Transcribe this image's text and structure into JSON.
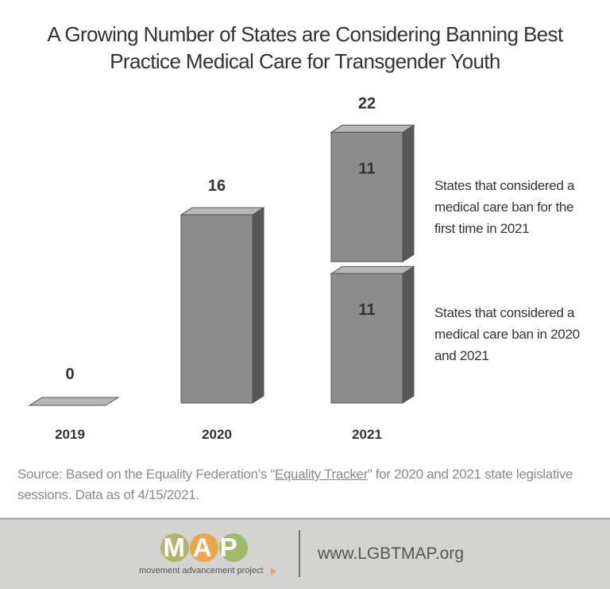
{
  "chart_data": {
    "type": "bar3d",
    "title": "A Growing Number of States are Considering Banning Best Practice Medical Care for Transgender Youth",
    "categories": [
      "2019",
      "2020",
      "2021"
    ],
    "series": [
      {
        "name": "States that considered a medical care ban in 2020 and 2021",
        "color": "#8c8c8c",
        "values": [
          0,
          16,
          11
        ]
      },
      {
        "name": "States that considered a medical care ban for the first time in 2021",
        "color": "#8c8c8c",
        "values": [
          null,
          null,
          11
        ]
      }
    ],
    "totals": [
      0,
      16,
      22
    ]
  },
  "source": {
    "before": "Source: Based on the Equality Federation’s “",
    "link": "Equality Tracker",
    "after": "” for 2020 and 2021 state legislative sessions. Data as of 4/15/2021."
  },
  "logo": {
    "mark": "MAP",
    "name": "movement advancement project"
  },
  "url": "www.LGBTMAP.org"
}
